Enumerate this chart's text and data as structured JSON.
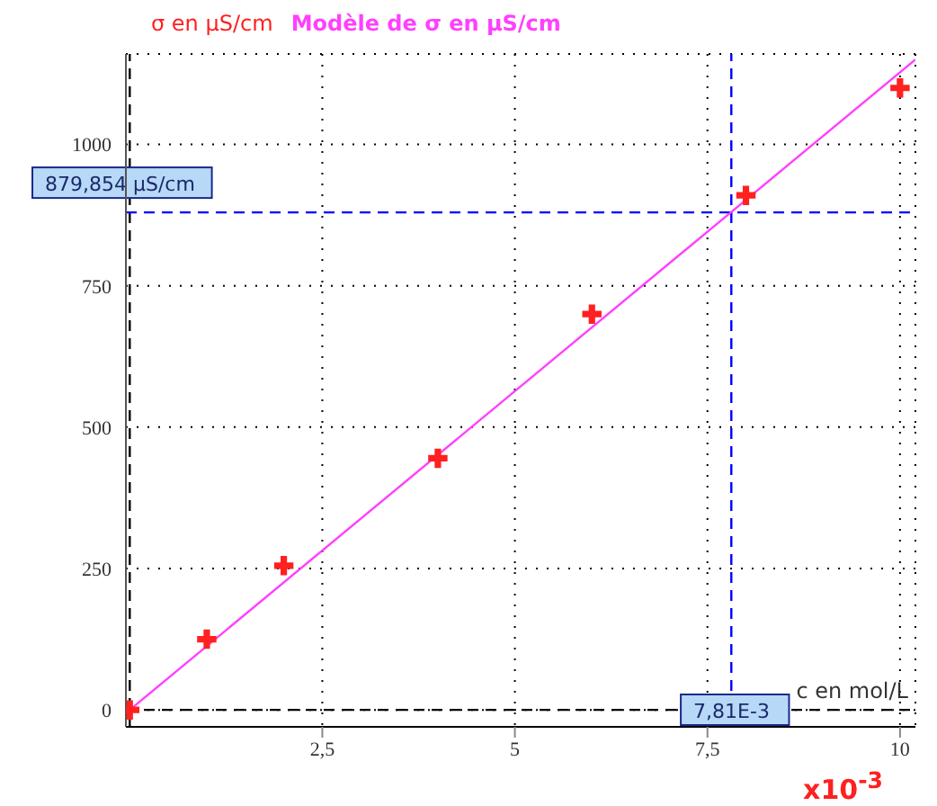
{
  "chart_data": {
    "type": "scatter",
    "xlabel": "c en mol/L",
    "annotations": [
      "x10$^{-3}$"
    ],
    "series": [
      {
        "name": "σ en µS/cm",
        "color": "#ff2020",
        "marker": "cross",
        "x": [
          0,
          1,
          2,
          4,
          6,
          8,
          10
        ],
        "values": [
          0,
          125,
          255,
          445,
          700,
          910,
          1100
        ]
      },
      {
        "name": "Modèle de σ en µS/cm",
        "type": "line",
        "color": "#ff40ff",
        "marker": "none",
        "x": [
          0,
          10.2
        ],
        "values": [
          0,
          1150
        ]
      }
    ],
    "xlim": [
      -0.05,
      10.2
    ],
    "ylim": [
      -30,
      1160
    ],
    "xticks": [
      {
        "value": 2.5,
        "label": "2,5"
      },
      5,
      {
        "value": 7.5,
        "label": "7,5"
      },
      10
    ],
    "yticks": [
      0,
      250,
      500,
      750,
      1000
    ],
    "ref_lines": [
      {
        "axis": "x",
        "value": 0,
        "color": "#000000",
        "line_style": "dashed"
      },
      {
        "axis": "y",
        "value": 0,
        "color": "#000000",
        "line_style": "dashed"
      },
      {
        "axis": "x",
        "value": 7.81,
        "label": "7,81E-3",
        "color": "#0000ff",
        "line_style": "dashed"
      },
      {
        "axis": "y",
        "value": 879.854,
        "label": "879,854 µS/cm",
        "color": "#0000ff",
        "line_style": "dashed"
      }
    ],
    "grid": true,
    "legend": "top left"
  }
}
